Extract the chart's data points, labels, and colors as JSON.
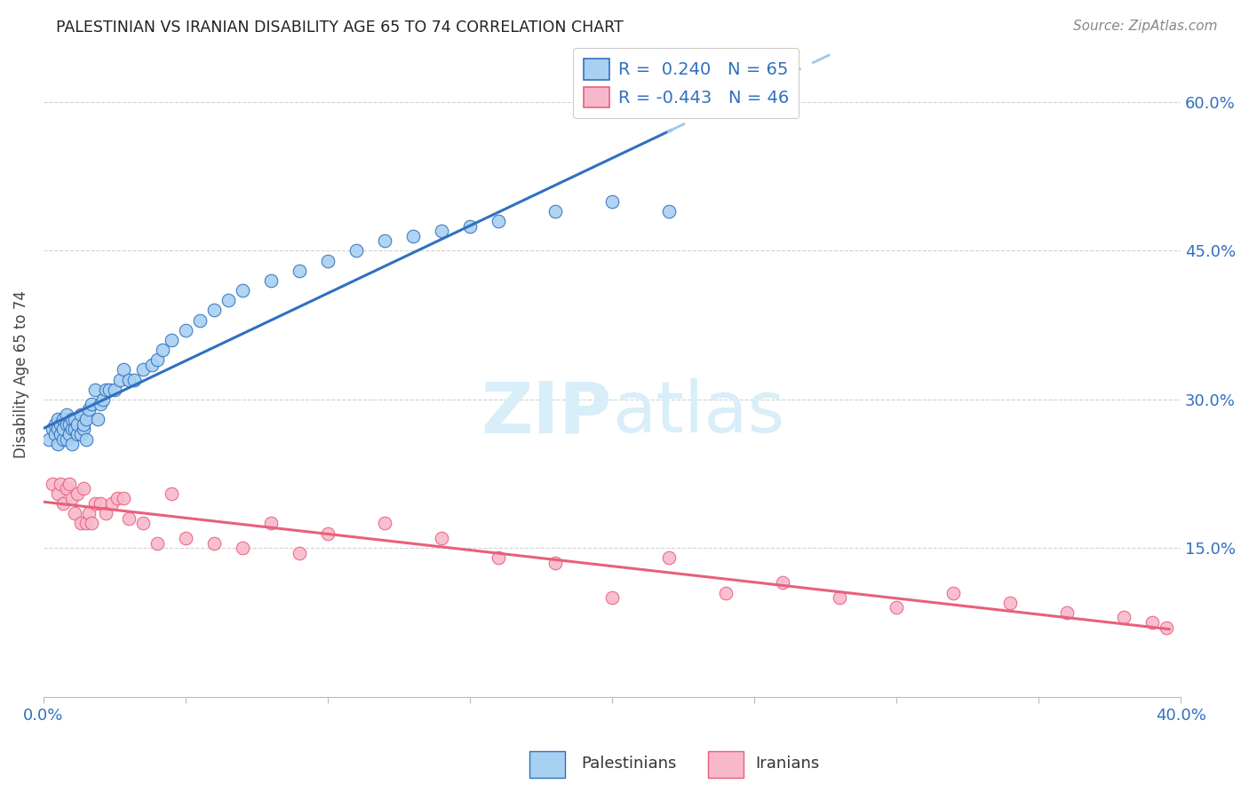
{
  "title": "PALESTINIAN VS IRANIAN DISABILITY AGE 65 TO 74 CORRELATION CHART",
  "source": "Source: ZipAtlas.com",
  "ylabel": "Disability Age 65 to 74",
  "yticks": [
    "15.0%",
    "30.0%",
    "45.0%",
    "60.0%"
  ],
  "ytick_vals": [
    0.15,
    0.3,
    0.45,
    0.6
  ],
  "xlim": [
    0.0,
    0.4
  ],
  "ylim": [
    0.0,
    0.65
  ],
  "r_palestinian": 0.24,
  "n_palestinian": 65,
  "r_iranian": -0.443,
  "n_iranian": 46,
  "palestinian_color": "#a8d0f0",
  "iranian_color": "#f8b8cc",
  "line_palestinian_color": "#3070c0",
  "line_iranian_color": "#e8607a",
  "dash_color": "#a0c8e8",
  "watermark_color": "#d8eef8",
  "palestinian_x": [
    0.002,
    0.003,
    0.004,
    0.004,
    0.005,
    0.005,
    0.005,
    0.006,
    0.006,
    0.007,
    0.007,
    0.007,
    0.008,
    0.008,
    0.008,
    0.009,
    0.009,
    0.01,
    0.01,
    0.01,
    0.011,
    0.011,
    0.012,
    0.012,
    0.013,
    0.013,
    0.014,
    0.014,
    0.015,
    0.015,
    0.016,
    0.017,
    0.018,
    0.019,
    0.02,
    0.021,
    0.022,
    0.023,
    0.025,
    0.027,
    0.028,
    0.03,
    0.032,
    0.035,
    0.038,
    0.04,
    0.042,
    0.045,
    0.05,
    0.055,
    0.06,
    0.065,
    0.07,
    0.08,
    0.09,
    0.1,
    0.11,
    0.12,
    0.13,
    0.14,
    0.15,
    0.16,
    0.18,
    0.2,
    0.22
  ],
  "palestinian_y": [
    0.26,
    0.27,
    0.265,
    0.275,
    0.255,
    0.27,
    0.28,
    0.265,
    0.275,
    0.26,
    0.28,
    0.27,
    0.26,
    0.275,
    0.285,
    0.265,
    0.275,
    0.255,
    0.27,
    0.28,
    0.27,
    0.28,
    0.265,
    0.275,
    0.265,
    0.285,
    0.27,
    0.275,
    0.26,
    0.28,
    0.29,
    0.295,
    0.31,
    0.28,
    0.295,
    0.3,
    0.31,
    0.31,
    0.31,
    0.32,
    0.33,
    0.32,
    0.32,
    0.33,
    0.335,
    0.34,
    0.35,
    0.36,
    0.37,
    0.38,
    0.39,
    0.4,
    0.41,
    0.42,
    0.43,
    0.44,
    0.45,
    0.46,
    0.465,
    0.47,
    0.475,
    0.48,
    0.49,
    0.5,
    0.49
  ],
  "iranian_x": [
    0.003,
    0.005,
    0.006,
    0.007,
    0.008,
    0.009,
    0.01,
    0.011,
    0.012,
    0.013,
    0.014,
    0.015,
    0.016,
    0.017,
    0.018,
    0.02,
    0.022,
    0.024,
    0.026,
    0.028,
    0.03,
    0.035,
    0.04,
    0.045,
    0.05,
    0.06,
    0.07,
    0.08,
    0.09,
    0.1,
    0.12,
    0.14,
    0.16,
    0.18,
    0.2,
    0.22,
    0.24,
    0.26,
    0.28,
    0.3,
    0.32,
    0.34,
    0.36,
    0.38,
    0.39,
    0.395
  ],
  "iranian_y": [
    0.215,
    0.205,
    0.215,
    0.195,
    0.21,
    0.215,
    0.2,
    0.185,
    0.205,
    0.175,
    0.21,
    0.175,
    0.185,
    0.175,
    0.195,
    0.195,
    0.185,
    0.195,
    0.2,
    0.2,
    0.18,
    0.175,
    0.155,
    0.205,
    0.16,
    0.155,
    0.15,
    0.175,
    0.145,
    0.165,
    0.175,
    0.16,
    0.14,
    0.135,
    0.1,
    0.14,
    0.105,
    0.115,
    0.1,
    0.09,
    0.105,
    0.095,
    0.085,
    0.08,
    0.075,
    0.07
  ]
}
